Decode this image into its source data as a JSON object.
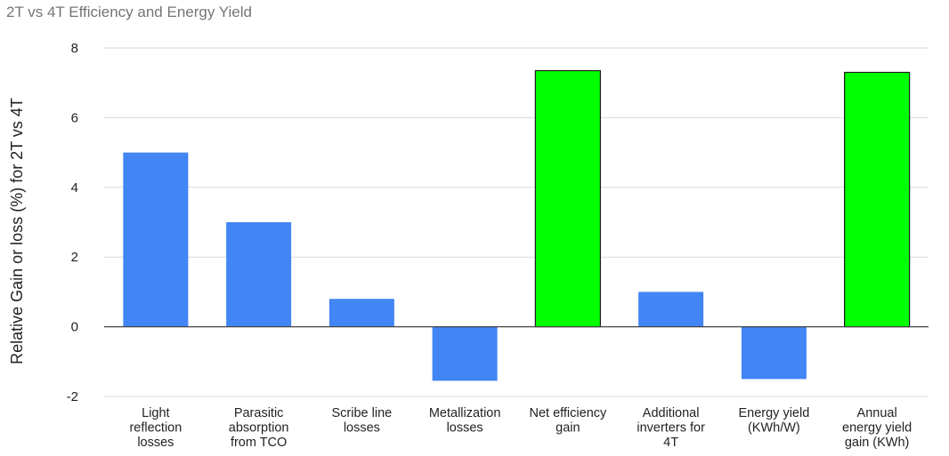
{
  "chart_data": {
    "type": "bar",
    "title": "2T vs 4T Efficiency and Energy Yield",
    "xlabel": "",
    "ylabel": "Relative Gain or loss (%) for 2T vs 4T",
    "ylim": [
      -2,
      8
    ],
    "yticks": [
      -2,
      0,
      2,
      4,
      6,
      8
    ],
    "ytick_labels": [
      "-2",
      "0",
      "2",
      "4",
      "6",
      "8"
    ],
    "grid": true,
    "categories": [
      "Light reflection losses",
      "Parasitic absorption from TCO",
      "Scribe line losses",
      "Metallization losses",
      "Net efficiency gain",
      "Additional inverters for 4T",
      "Energy yield (KWh/W)",
      "Annual energy yield gain (KWh)"
    ],
    "category_lines": [
      [
        "Light",
        "reflection",
        "losses"
      ],
      [
        "Parasitic",
        "absorption",
        "from TCO"
      ],
      [
        "Scribe line",
        "losses"
      ],
      [
        "Metallization",
        "losses"
      ],
      [
        "Net efficiency",
        "gain"
      ],
      [
        "Additional",
        "inverters for",
        "4T"
      ],
      [
        "Energy yield",
        "(KWh/W)"
      ],
      [
        "Annual",
        "energy yield",
        "gain (KWh)"
      ]
    ],
    "values": [
      5.0,
      3.0,
      0.8,
      -1.55,
      7.35,
      1.0,
      -1.5,
      7.3
    ],
    "colors": [
      "#4285f4",
      "#4285f4",
      "#4285f4",
      "#4285f4",
      "#00ff00",
      "#4285f4",
      "#4285f4",
      "#00ff00"
    ]
  }
}
